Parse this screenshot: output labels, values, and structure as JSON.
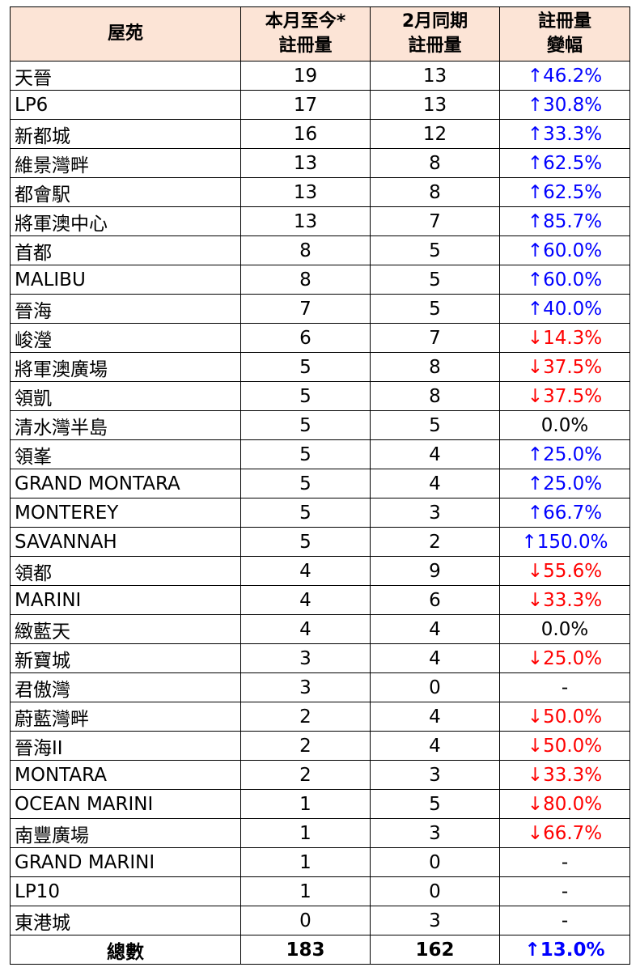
{
  "header": {
    "estate": "屋苑",
    "mtd": [
      "本月至今*",
      "註冊量"
    ],
    "feb": [
      "2月同期",
      "註冊量"
    ],
    "change": [
      "註冊量",
      "變幅"
    ]
  },
  "rows": [
    [
      "天晉",
      19,
      13,
      "↑46.2%",
      "up"
    ],
    [
      "LP6",
      17,
      13,
      "↑30.8%",
      "up"
    ],
    [
      "新都城",
      16,
      12,
      "↑33.3%",
      "up"
    ],
    [
      "維景灣畔",
      13,
      8,
      "↑62.5%",
      "up"
    ],
    [
      "都會駅",
      13,
      8,
      "↑62.5%",
      "up"
    ],
    [
      "將軍澳中心",
      13,
      7,
      "↑85.7%",
      "up"
    ],
    [
      "首都",
      8,
      5,
      "↑60.0%",
      "up"
    ],
    [
      "MALIBU",
      8,
      5,
      "↑60.0%",
      "up"
    ],
    [
      "晉海",
      7,
      5,
      "↑40.0%",
      "up"
    ],
    [
      "峻瀅",
      6,
      7,
      "↓14.3%",
      "down"
    ],
    [
      "將軍澳廣場",
      5,
      8,
      "↓37.5%",
      "down"
    ],
    [
      "領凱",
      5,
      8,
      "↓37.5%",
      "down"
    ],
    [
      "清水灣半島",
      5,
      5,
      "0.0%",
      "flat"
    ],
    [
      "領峯",
      5,
      4,
      "↑25.0%",
      "up"
    ],
    [
      "GRAND MONTARA",
      5,
      4,
      "↑25.0%",
      "up"
    ],
    [
      "MONTEREY",
      5,
      3,
      "↑66.7%",
      "up"
    ],
    [
      "SAVANNAH",
      5,
      2,
      "↑150.0%",
      "up"
    ],
    [
      "領都",
      4,
      9,
      "↓55.6%",
      "down"
    ],
    [
      "MARINI",
      4,
      6,
      "↓33.3%",
      "down"
    ],
    [
      "緻藍天",
      4,
      4,
      "0.0%",
      "flat"
    ],
    [
      "新寶城",
      3,
      4,
      "↓25.0%",
      "down"
    ],
    [
      "君傲灣",
      3,
      0,
      "-",
      "flat"
    ],
    [
      "蔚藍灣畔",
      2,
      4,
      "↓50.0%",
      "down"
    ],
    [
      "晉海II",
      2,
      4,
      "↓50.0%",
      "down"
    ],
    [
      "MONTARA",
      2,
      3,
      "↓33.3%",
      "down"
    ],
    [
      "OCEAN MARINI",
      1,
      5,
      "↓80.0%",
      "down"
    ],
    [
      "南豐廣場",
      1,
      3,
      "↓66.7%",
      "down"
    ],
    [
      "GRAND MARINI",
      1,
      0,
      "-",
      "flat"
    ],
    [
      "LP10",
      1,
      0,
      "-",
      "flat"
    ],
    [
      "東港城",
      0,
      3,
      "-",
      "flat"
    ]
  ],
  "total": {
    "label": "總數",
    "mtd": 183,
    "feb": 162,
    "change": "↑13.0%",
    "dir": "up"
  },
  "colors": {
    "header_bg": "#fce4d6",
    "up": "#0000ff",
    "down": "#ff0000"
  }
}
